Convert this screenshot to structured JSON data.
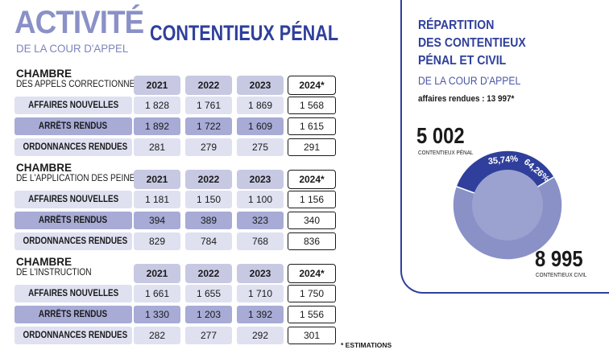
{
  "header": {
    "title": "ACTIVITÉ",
    "subtitle": "DE LA COUR D'APPEL",
    "section": "CONTENTIEUX PÉNAL"
  },
  "years": [
    "2021",
    "2022",
    "2023",
    "2024*"
  ],
  "chambers": [
    {
      "title": "CHAMBRE",
      "subtitle": "DES APPELS CORRECTIONNELS",
      "rows": [
        {
          "label_a": "AFFAIRES ",
          "label_b": "NOUVELLES",
          "values": [
            "1 828",
            "1 761",
            "1 869",
            "1 568"
          ]
        },
        {
          "label_a": "ARRÊTS ",
          "label_b": "RENDUS",
          "values": [
            "1 892",
            "1 722",
            "1 609",
            "1 615"
          ]
        },
        {
          "label_a": "ORDONNANCES ",
          "label_b": "RENDUES",
          "values": [
            "281",
            "279",
            "275",
            "291"
          ]
        }
      ]
    },
    {
      "title": "CHAMBRE",
      "subtitle": "DE L'APPLICATION DES PEINES",
      "rows": [
        {
          "label_a": "AFFAIRES ",
          "label_b": "NOUVELLES",
          "values": [
            "1 181",
            "1 150",
            "1 100",
            "1 156"
          ]
        },
        {
          "label_a": "ARRÊTS ",
          "label_b": "RENDUS",
          "values": [
            "394",
            "389",
            "323",
            "340"
          ]
        },
        {
          "label_a": "ORDONNANCES ",
          "label_b": "RENDUES",
          "values": [
            "829",
            "784",
            "768",
            "836"
          ]
        }
      ]
    },
    {
      "title": "CHAMBRE",
      "subtitle": "DE L'INSTRUCTION",
      "rows": [
        {
          "label_a": "AFFAIRES ",
          "label_b": "NOUVELLES",
          "values": [
            "1 661",
            "1 655",
            "1 710",
            "1 750"
          ]
        },
        {
          "label_a": "ARRÊTS ",
          "label_b": "RENDUS",
          "values": [
            "1 330",
            "1 203",
            "1 392",
            "1 556"
          ]
        },
        {
          "label_a": "ORDONNANCES ",
          "label_b": "RENDUES",
          "values": [
            "282",
            "277",
            "292",
            "301"
          ]
        }
      ]
    }
  ],
  "note": "* ESTIMATIONS",
  "repartition": {
    "title_lines": [
      "RÉPARTITION",
      "DES CONTENTIEUX",
      "PÉNAL ET CIVIL"
    ],
    "subtitle": "DE LA COUR D'APPEL",
    "total": "affaires rendues : 13 997*",
    "penal_value": "5 002",
    "penal_label": "CONTENTIEUX PÉNAL",
    "civil_value": "8 995",
    "civil_label": "CONTENTIEUX CIVIL",
    "penal_pct_label": "35,74%",
    "civil_pct_label": "64,26%"
  },
  "chart_data": {
    "type": "pie",
    "title": "RÉPARTITION DES CONTENTIEUX PÉNAL ET CIVIL",
    "categories": [
      "Contentieux pénal",
      "Contentieux civil"
    ],
    "values": [
      5002,
      8995
    ],
    "percentages": [
      35.74,
      64.26
    ],
    "colors": [
      "#2f3f9b",
      "#8a91c7"
    ]
  }
}
